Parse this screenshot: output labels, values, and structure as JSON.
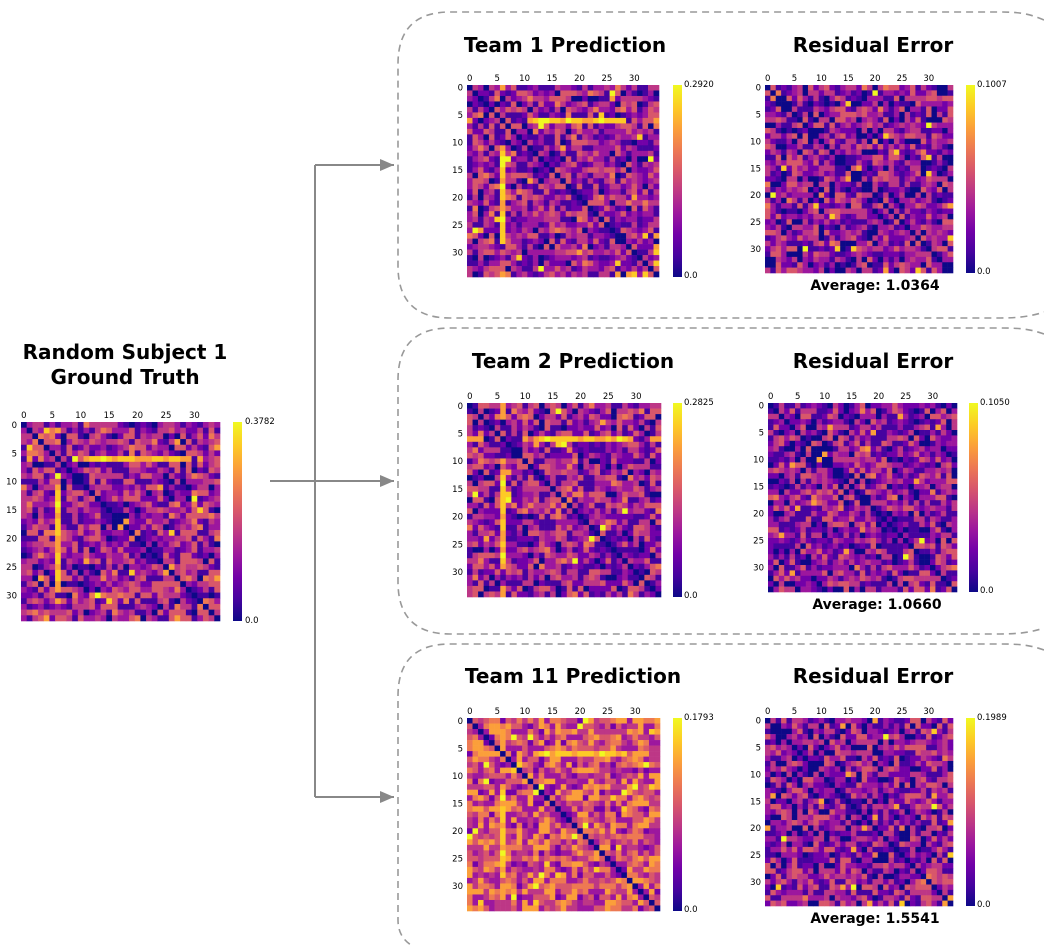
{
  "colormap": [
    "#0d0887",
    "#46039f",
    "#7201a8",
    "#9c179e",
    "#bd3786",
    "#d8576b",
    "#ed7953",
    "#fb9f3a",
    "#fdca26",
    "#f0f921"
  ],
  "ground_truth": {
    "title_line1": "Random Subject 1",
    "title_line2": "Ground Truth",
    "cbar_max": "0.3782",
    "cbar_min": "0.0"
  },
  "panels": [
    {
      "pred_title": "Team 1 Prediction",
      "resid_title": "Residual Error",
      "pred_cbar_max": "0.2920",
      "pred_cbar_min": "0.0",
      "resid_cbar_max": "0.1007",
      "resid_cbar_min": "0.0",
      "average": "Average: 1.0364"
    },
    {
      "pred_title": "Team 2 Prediction",
      "resid_title": "Residual Error",
      "pred_cbar_max": "0.2825",
      "pred_cbar_min": "0.0",
      "resid_cbar_max": "0.1050",
      "resid_cbar_min": "0.0",
      "average": "Average: 1.0660"
    },
    {
      "pred_title": "Team 11 Prediction",
      "resid_title": "Residual Error",
      "pred_cbar_max": "0.1793",
      "pred_cbar_min": "0.0",
      "resid_cbar_max": "0.1989",
      "resid_cbar_min": "0.0",
      "average": "Average: 1.5541"
    }
  ],
  "chart_data": [
    {
      "type": "heatmap",
      "title": "Random Subject 1 Ground Truth",
      "matrix_size": 35,
      "x_ticks": [
        "0",
        "5",
        "10",
        "15",
        "20",
        "25",
        "30"
      ],
      "y_ticks": [
        "0",
        "5",
        "10",
        "15",
        "20",
        "25",
        "30"
      ],
      "colorbar_range": [
        0.0,
        0.3782
      ],
      "colormap": "plasma",
      "diagonal_value": 0.0
    },
    {
      "type": "heatmap",
      "title": "Team 1 Prediction",
      "matrix_size": 35,
      "x_ticks": [
        "0",
        "5",
        "10",
        "15",
        "20",
        "25",
        "30"
      ],
      "y_ticks": [
        "0",
        "5",
        "10",
        "15",
        "20",
        "25",
        "30"
      ],
      "colorbar_range": [
        0.0,
        0.292
      ],
      "colormap": "plasma",
      "diagonal_value": 0.0
    },
    {
      "type": "heatmap",
      "title": "Residual Error",
      "matrix_size": 35,
      "x_ticks": [
        "0",
        "5",
        "10",
        "15",
        "20",
        "25",
        "30"
      ],
      "y_ticks": [
        "0",
        "5",
        "10",
        "15",
        "20",
        "25",
        "30"
      ],
      "colorbar_range": [
        0.0,
        0.1007
      ],
      "colormap": "plasma",
      "average": 1.0364
    },
    {
      "type": "heatmap",
      "title": "Team 2 Prediction",
      "matrix_size": 35,
      "x_ticks": [
        "0",
        "5",
        "10",
        "15",
        "20",
        "25",
        "30"
      ],
      "y_ticks": [
        "0",
        "5",
        "10",
        "15",
        "20",
        "25",
        "30"
      ],
      "colorbar_range": [
        0.0,
        0.2825
      ],
      "colormap": "plasma",
      "diagonal_value": 0.0
    },
    {
      "type": "heatmap",
      "title": "Residual Error",
      "matrix_size": 35,
      "x_ticks": [
        "0",
        "5",
        "10",
        "15",
        "20",
        "25",
        "30"
      ],
      "y_ticks": [
        "0",
        "5",
        "10",
        "15",
        "20",
        "25",
        "30"
      ],
      "colorbar_range": [
        0.0,
        0.105
      ],
      "colormap": "plasma",
      "average": 1.066
    },
    {
      "type": "heatmap",
      "title": "Team 11 Prediction",
      "matrix_size": 35,
      "x_ticks": [
        "0",
        "5",
        "10",
        "15",
        "20",
        "25",
        "30"
      ],
      "y_ticks": [
        "0",
        "5",
        "10",
        "15",
        "20",
        "25",
        "30"
      ],
      "colorbar_range": [
        0.0,
        0.1793
      ],
      "colormap": "plasma",
      "diagonal_value": 0.0
    },
    {
      "type": "heatmap",
      "title": "Residual Error",
      "matrix_size": 35,
      "x_ticks": [
        "0",
        "5",
        "10",
        "15",
        "20",
        "25",
        "30"
      ],
      "y_ticks": [
        "0",
        "5",
        "10",
        "15",
        "20",
        "25",
        "30"
      ],
      "colorbar_range": [
        0.0,
        0.1989
      ],
      "colormap": "plasma",
      "average": 1.5541
    }
  ]
}
